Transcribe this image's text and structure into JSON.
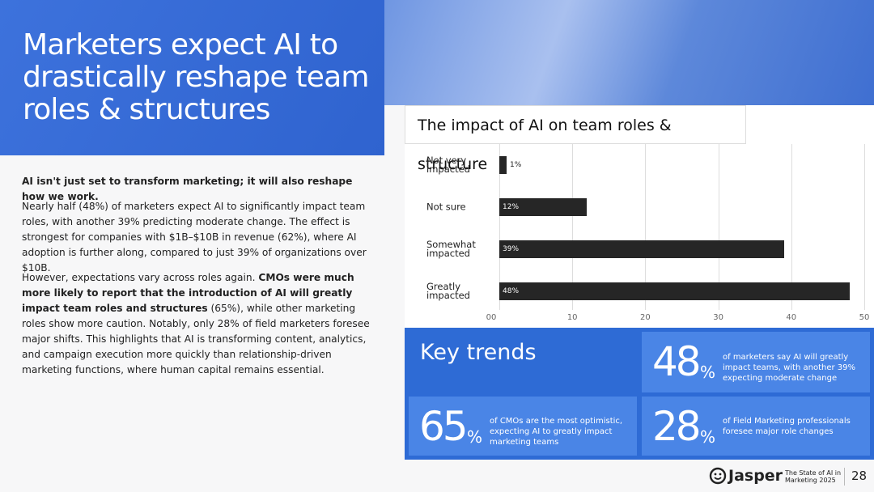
{
  "header": {
    "title": "Marketers expect AI to drastically reshape team roles & structures"
  },
  "body": {
    "lead": "AI isn't just set to transform marketing; it will also reshape how we work.",
    "paragraph_1": "Nearly half (48%) of marketers expect AI to significantly impact team roles, with another 39% predicting moderate change. The effect is strongest for companies with $1B–$10B in revenue (62%), where AI adoption is further along, compared to just 39% of organizations over $10B.",
    "paragraph_2": {
      "before": "However, expectations vary across roles again. ",
      "bold": "CMOs were much more likely to report that the introduction of AI will greatly impact team roles and structures",
      "after": " (65%), while other marketing roles show more caution. Notably, only 28% of field marketers foresee major shifts. This highlights that AI is transforming content, analytics, and campaign execution more quickly than relationship-driven marketing functions, where human capital remains essential."
    }
  },
  "chart_data": {
    "type": "hbar",
    "title": "The impact of AI on team roles & structure",
    "categories": [
      "Not very impacted",
      "Not sure",
      "Somewhat impacted",
      "Greatly impacted"
    ],
    "values": [
      1,
      12,
      39,
      48
    ],
    "value_labels": [
      "1%",
      "12%",
      "39%",
      "48%"
    ],
    "color": "#262626",
    "xlim": [
      0,
      50
    ],
    "xticks": [
      {
        "value": 0,
        "label": "00"
      },
      10,
      20,
      30,
      40,
      50
    ],
    "grid": true
  },
  "key_trends": {
    "title": "Key trends",
    "items": [
      {
        "number": 48,
        "unit": "%",
        "text": "of marketers say AI will greatly impact teams, with another 39% expecting moderate change"
      },
      {
        "number": 65,
        "unit": "%",
        "text": "of CMOs are the most optimistic, expecting AI to greatly impact marketing teams"
      },
      {
        "number": 28,
        "unit": "%",
        "text": "of Field Marketing professionals foresee major role changes"
      }
    ]
  },
  "footer": {
    "brand": "Jasper",
    "report": "The State of AI in Marketing 2025",
    "page": 28
  }
}
